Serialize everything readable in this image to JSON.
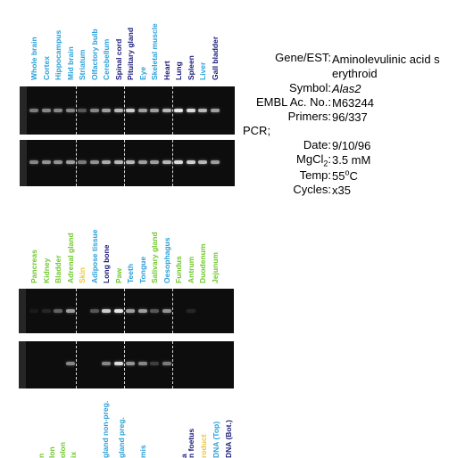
{
  "panels": [
    {
      "labels": [
        {
          "text": "Whole brain",
          "color": "#2aa0d8"
        },
        {
          "text": "Cortex",
          "color": "#2aa0d8"
        },
        {
          "text": "Hippocampus",
          "color": "#2aa0d8"
        },
        {
          "text": "Mid brain",
          "color": "#2aa0d8"
        },
        {
          "text": "Striatum",
          "color": "#2aa0d8"
        },
        {
          "text": "Olfactory bulb",
          "color": "#2aa0d8"
        },
        {
          "text": "Cerebellum",
          "color": "#2aa0d8"
        },
        {
          "text": "Spinal cord",
          "color": "#1a1a7a"
        },
        {
          "text": "Pituitary gland",
          "color": "#1a1a7a"
        },
        {
          "text": "Eye",
          "color": "#2aa0d8"
        },
        {
          "text": "Skeletal muscle",
          "color": "#2aa0d8"
        },
        {
          "text": "Heart",
          "color": "#1a1a7a"
        },
        {
          "text": "Lung",
          "color": "#1a1a7a"
        },
        {
          "text": "Spleen",
          "color": "#1a1a7a"
        },
        {
          "text": "Liver",
          "color": "#2aa0d8"
        },
        {
          "text": "Gall bladder",
          "color": "#1a1a7a"
        }
      ],
      "bands_top": [
        0.45,
        0.5,
        0.5,
        0.5,
        0.3,
        0.5,
        0.6,
        0.7,
        0.8,
        0.6,
        0.6,
        0.7,
        0.9,
        0.85,
        0.7,
        0.6
      ],
      "bands_bottom": [
        0.5,
        0.55,
        0.55,
        0.6,
        0.45,
        0.55,
        0.65,
        0.7,
        0.7,
        0.6,
        0.6,
        0.7,
        0.85,
        0.8,
        0.7,
        0.6
      ]
    },
    {
      "labels": [
        {
          "text": "Pancreas",
          "color": "#6ec82a"
        },
        {
          "text": "Kidney",
          "color": "#6ec82a"
        },
        {
          "text": "Bladder",
          "color": "#6ec82a"
        },
        {
          "text": "Adrenal gland",
          "color": "#6ec82a"
        },
        {
          "text": "Skin",
          "color": "#e8c840"
        },
        {
          "text": "Adipose tissue",
          "color": "#2aa0d8"
        },
        {
          "text": "Long bone",
          "color": "#1a1a7a"
        },
        {
          "text": "Paw",
          "color": "#6ec82a"
        },
        {
          "text": "Teeth",
          "color": "#2aa0d8"
        },
        {
          "text": "Tongue",
          "color": "#2aa0d8"
        },
        {
          "text": "Salivary gland",
          "color": "#6ec82a"
        },
        {
          "text": "Oesophagus",
          "color": "#2aa0d8"
        },
        {
          "text": "Fundus",
          "color": "#6ec82a"
        },
        {
          "text": "Antrum",
          "color": "#6ec82a"
        },
        {
          "text": "Duodenum",
          "color": "#6ec82a"
        },
        {
          "text": "Jejunum",
          "color": "#6ec82a"
        }
      ],
      "bands_top": [
        0.05,
        0.1,
        0.35,
        0.6,
        0,
        0.3,
        0.8,
        0.9,
        0.6,
        0.6,
        0.3,
        0.55,
        0,
        0.1,
        0,
        0
      ],
      "bands_bottom": [
        0,
        0,
        0,
        0.5,
        0,
        0,
        0.5,
        0.85,
        0.55,
        0.5,
        0.2,
        0.45,
        0,
        0,
        0,
        0
      ]
    }
  ],
  "partial_labels": [
    {
      "text": "n",
      "color": "#6ec82a"
    },
    {
      "text": "lon",
      "color": "#6ec82a"
    },
    {
      "text": "olon",
      "color": "#6ec82a"
    },
    {
      "text": "ix",
      "color": "#6ec82a"
    },
    {
      "text": "gland non-preg.",
      "color": "#2aa0d8"
    },
    {
      "text": "gland preg.",
      "color": "#2aa0d8"
    },
    {
      "text": "mis",
      "color": "#2aa0d8"
    },
    {
      "text": "a",
      "color": "#1a1a7a"
    },
    {
      "text": "n foetus",
      "color": "#1a1a7a"
    },
    {
      "text": "roduct",
      "color": "#e8c840"
    },
    {
      "text": "DNA (Top)",
      "color": "#2aa0d8"
    },
    {
      "text": "DNA (Bot.)",
      "color": "#1a1a7a"
    }
  ],
  "info": {
    "gene_key": "Gene/EST:",
    "gene_val_1": "Aminolevulinic acid s",
    "gene_val_2": "erythroid",
    "symbol_key": "Symbol:",
    "symbol_val": "Alas2",
    "embl_key": "EMBL Ac. No.:",
    "embl_val": "M63244",
    "primers_key": "Primers:",
    "primers_val": "96/337",
    "pcr_label": "PCR;",
    "date_key": "Date:",
    "date_val": "9/10/96",
    "mgcl_key_main": "MgCl",
    "mgcl_key_sub": "2",
    "mgcl_key_colon": ":",
    "mgcl_val": "3.5 mM",
    "temp_key": "Temp:",
    "temp_val_num": "55",
    "temp_val_sup": "o",
    "temp_val_unit": "C",
    "cycles_key": "Cycles:",
    "cycles_val": "x35"
  }
}
